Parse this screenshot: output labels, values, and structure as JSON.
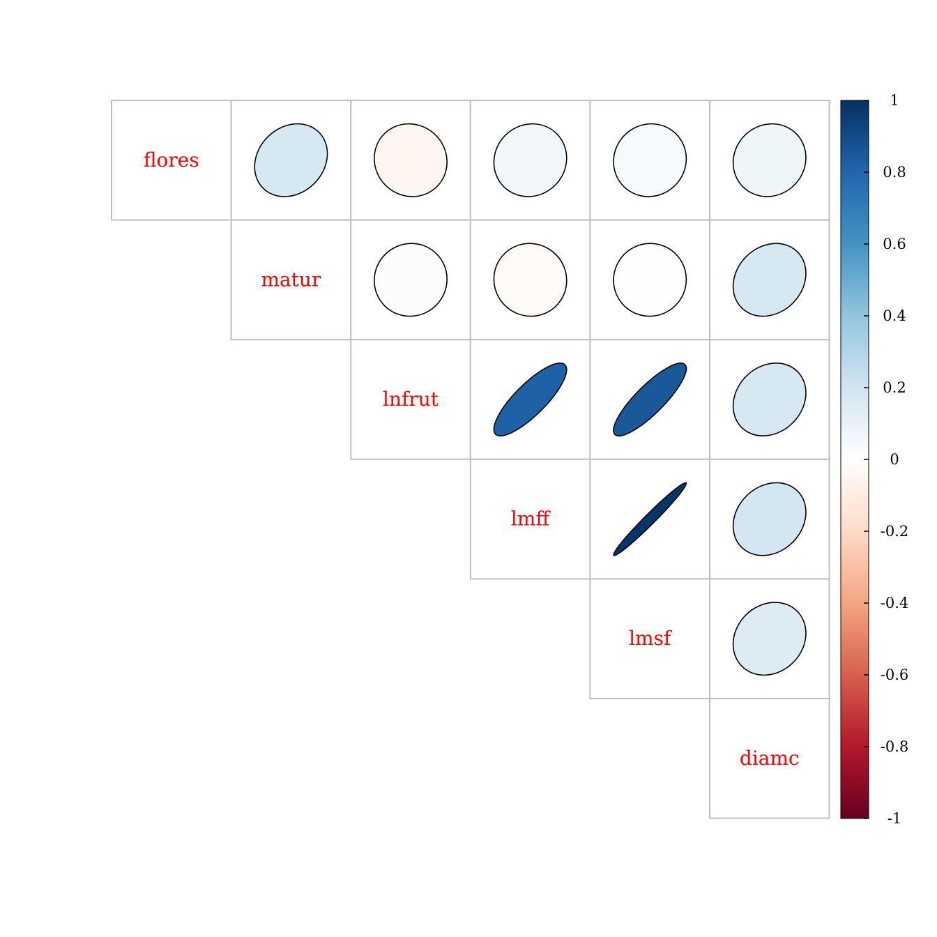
{
  "chart_data": {
    "type": "heatmap",
    "subtype": "correlation-ellipse-upper",
    "variables": [
      "flores",
      "matur",
      "lnfrut",
      "lmff",
      "lmsf",
      "diamc"
    ],
    "matrix": [
      [
        1.0,
        0.18,
        -0.05,
        0.06,
        0.04,
        0.07
      ],
      [
        0.18,
        1.0,
        0.02,
        -0.02,
        0.01,
        0.18
      ],
      [
        -0.05,
        0.02,
        1.0,
        0.82,
        0.85,
        0.18
      ],
      [
        0.06,
        -0.02,
        0.82,
        1.0,
        0.98,
        0.19
      ],
      [
        0.04,
        0.01,
        0.85,
        0.98,
        1.0,
        0.15
      ],
      [
        0.07,
        0.18,
        0.18,
        0.19,
        0.15,
        1.0
      ]
    ],
    "colorbar": {
      "range": [
        -1,
        1
      ],
      "ticks": [
        "1",
        "0.8",
        "0.6",
        "0.4",
        "0.2",
        "0",
        "-0.2",
        "-0.4",
        "-0.6",
        "-0.8",
        "-1"
      ],
      "colors": [
        "#67001F",
        "#B2182B",
        "#D6604D",
        "#F4A582",
        "#FDDBC7",
        "#FFFFFF",
        "#D1E5F0",
        "#92C5DE",
        "#4393C3",
        "#2166AC",
        "#053061"
      ]
    },
    "label_color": "#FF0000",
    "grid": true
  }
}
